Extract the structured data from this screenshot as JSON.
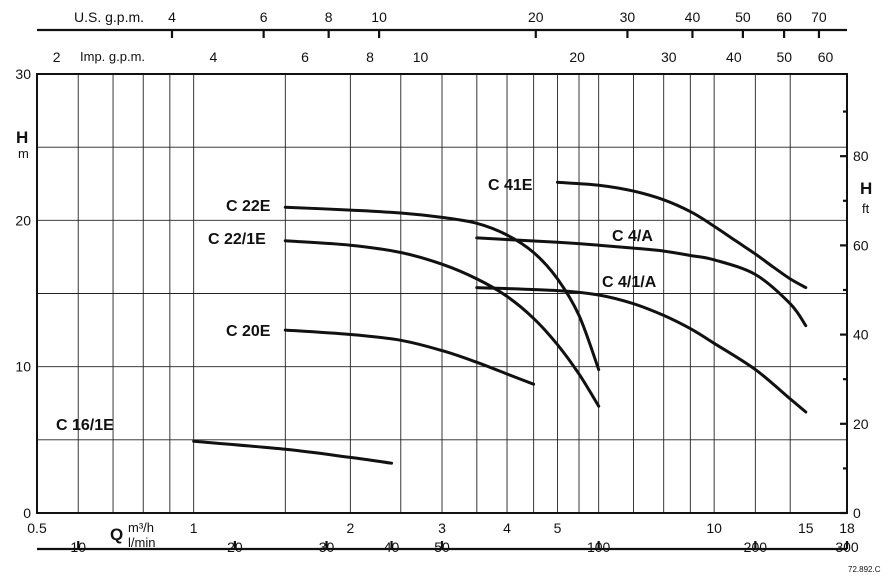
{
  "chart_data": {
    "type": "line",
    "x_scale": "log",
    "y_scale": "linear",
    "grid": true,
    "axes": {
      "bottom_main": {
        "unit_label_top": "m³/h",
        "unit_label_bottom": "l/min",
        "letter": "Q",
        "range": [
          0.5,
          18
        ],
        "ticks": [
          {
            "v": 0.5,
            "label": "0.5"
          },
          {
            "v": 1,
            "label": "1"
          },
          {
            "v": 2,
            "label": "2"
          },
          {
            "v": 3,
            "label": "3"
          },
          {
            "v": 4,
            "label": "4"
          },
          {
            "v": 5,
            "label": "5"
          },
          {
            "v": 10,
            "label": "10"
          },
          {
            "v": 15,
            "label": "15"
          },
          {
            "v": 18,
            "label": "18"
          }
        ],
        "gridlines": [
          0.6,
          0.7,
          0.8,
          0.9,
          1,
          1.5,
          2,
          2.5,
          3,
          3.5,
          4,
          4.5,
          5,
          5.5,
          6,
          7,
          8,
          9,
          10,
          12,
          14
        ]
      },
      "bottom_lmin": {
        "ticks": [
          {
            "v": 10,
            "label": "10"
          },
          {
            "v": 20,
            "label": "20"
          },
          {
            "v": 30,
            "label": "30"
          },
          {
            "v": 40,
            "label": "40"
          },
          {
            "v": 50,
            "label": "50"
          },
          {
            "v": 100,
            "label": "100"
          },
          {
            "v": 200,
            "label": "200"
          },
          {
            "v": 300,
            "label": "300"
          }
        ]
      },
      "top_us_gpm": {
        "title": "U.S. g.p.m.",
        "ticks": [
          {
            "v": 4,
            "label": "4"
          },
          {
            "v": 6,
            "label": "6"
          },
          {
            "v": 8,
            "label": "8"
          },
          {
            "v": 10,
            "label": "10"
          },
          {
            "v": 20,
            "label": "20"
          },
          {
            "v": 30,
            "label": "30"
          },
          {
            "v": 40,
            "label": "40"
          },
          {
            "v": 50,
            "label": "50"
          },
          {
            "v": 60,
            "label": "60"
          },
          {
            "v": 70,
            "label": "70"
          }
        ]
      },
      "top_imp_gpm": {
        "title": "Imp. g.p.m.",
        "ticks": [
          {
            "v": 2,
            "label": "2"
          },
          {
            "v": 4,
            "label": "4"
          },
          {
            "v": 6,
            "label": "6"
          },
          {
            "v": 8,
            "label": "8"
          },
          {
            "v": 10,
            "label": "10"
          },
          {
            "v": 20,
            "label": "20"
          },
          {
            "v": 30,
            "label": "30"
          },
          {
            "v": 40,
            "label": "40"
          },
          {
            "v": 50,
            "label": "50"
          },
          {
            "v": 60,
            "label": "60"
          }
        ]
      },
      "left_m": {
        "letter": "H",
        "unit": "m",
        "range": [
          0,
          30
        ],
        "ticks": [
          {
            "v": 0,
            "label": "0"
          },
          {
            "v": 10,
            "label": "10"
          },
          {
            "v": 20,
            "label": "20"
          },
          {
            "v": 30,
            "label": "30"
          }
        ],
        "gridlines": [
          5,
          10,
          15,
          20,
          25
        ]
      },
      "right_ft": {
        "letter": "H",
        "unit": "ft",
        "ticks": [
          {
            "v": 0,
            "label": "0"
          },
          {
            "v": 20,
            "label": "20"
          },
          {
            "v": 40,
            "label": "40"
          },
          {
            "v": 60,
            "label": "60"
          },
          {
            "v": 80,
            "label": "80"
          }
        ]
      }
    },
    "series": [
      {
        "name": "C 16/1E",
        "x": [
          1.0,
          1.5,
          2.0,
          2.4
        ],
        "y": [
          4.9,
          4.35,
          3.8,
          3.4
        ]
      },
      {
        "name": "C 20E",
        "x": [
          1.5,
          2.0,
          2.5,
          3.0,
          3.5,
          4.0,
          4.5
        ],
        "y": [
          12.5,
          12.2,
          11.8,
          11.1,
          10.3,
          9.5,
          8.8
        ]
      },
      {
        "name": "C 22/1E",
        "x": [
          1.5,
          2.0,
          2.5,
          3.0,
          3.5,
          4.0,
          4.5,
          5.0,
          5.5,
          6.0
        ],
        "y": [
          18.6,
          18.3,
          17.8,
          17.0,
          16.0,
          14.8,
          13.3,
          11.5,
          9.5,
          7.3
        ]
      },
      {
        "name": "C 22E",
        "x": [
          1.5,
          2.0,
          2.5,
          3.0,
          3.5,
          4.0,
          4.5,
          5.0,
          5.5,
          6.0
        ],
        "y": [
          20.9,
          20.7,
          20.5,
          20.2,
          19.8,
          19.0,
          17.8,
          16.0,
          13.5,
          9.8
        ]
      },
      {
        "name": "C 4/A",
        "x": [
          3.5,
          5.0,
          6.0,
          7.0,
          8.0,
          9.0,
          10.0,
          12.0,
          14.0,
          15.0
        ],
        "y": [
          18.8,
          18.5,
          18.3,
          18.1,
          17.9,
          17.6,
          17.3,
          16.3,
          14.3,
          12.8
        ]
      },
      {
        "name": "C 4/1/A",
        "x": [
          3.5,
          5.0,
          6.0,
          7.0,
          8.0,
          9.0,
          10.0,
          12.0,
          14.0,
          15.0
        ],
        "y": [
          15.4,
          15.2,
          14.9,
          14.3,
          13.5,
          12.6,
          11.6,
          9.8,
          7.8,
          6.9
        ]
      },
      {
        "name": "C 41E",
        "x": [
          5.0,
          6.0,
          7.0,
          8.0,
          9.0,
          10.0,
          11.0,
          12.0,
          13.0,
          14.0,
          15.0
        ],
        "y": [
          22.6,
          22.4,
          22.0,
          21.4,
          20.6,
          19.6,
          18.6,
          17.7,
          16.8,
          16.0,
          15.4
        ]
      }
    ],
    "annotation": "72.892.C"
  }
}
